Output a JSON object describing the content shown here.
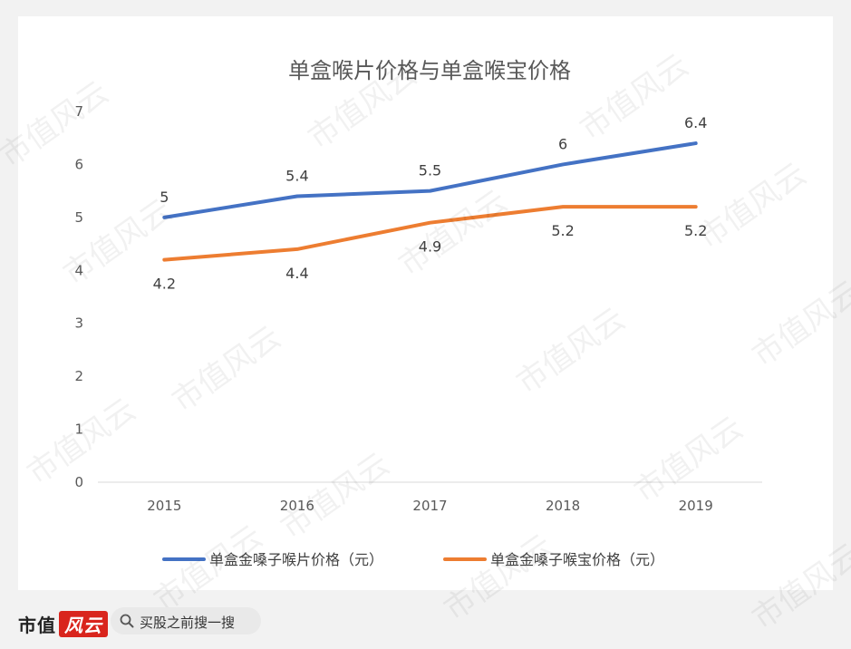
{
  "chart_data": {
    "type": "line",
    "title": "单盒喉片价格与单盒喉宝价格",
    "categories": [
      "2015",
      "2016",
      "2017",
      "2018",
      "2019"
    ],
    "ylim": [
      0,
      7
    ],
    "yticks": [
      "0",
      "1",
      "2",
      "3",
      "4",
      "5",
      "6",
      "7"
    ],
    "grid": false,
    "legend_position": "bottom",
    "series": [
      {
        "name": "单盒金嗓子喉片价格（元）",
        "values": [
          5,
          5.4,
          5.5,
          6,
          6.4
        ],
        "labels": [
          "5",
          "5.4",
          "5.5",
          "6",
          "6.4"
        ],
        "label_position": "above",
        "color": "#4472c4"
      },
      {
        "name": "单盒金嗓子喉宝价格（元）",
        "values": [
          4.2,
          4.4,
          4.9,
          5.2,
          5.2
        ],
        "labels": [
          "4.2",
          "4.4",
          "4.9",
          "5.2",
          "5.2"
        ],
        "label_position": "below",
        "color": "#ed7d31"
      }
    ]
  },
  "footer": {
    "brand": "市值",
    "brand_mark": "风云",
    "search_text": "买股之前搜一搜",
    "search_icon": "search-icon"
  },
  "watermark": "市值风云"
}
